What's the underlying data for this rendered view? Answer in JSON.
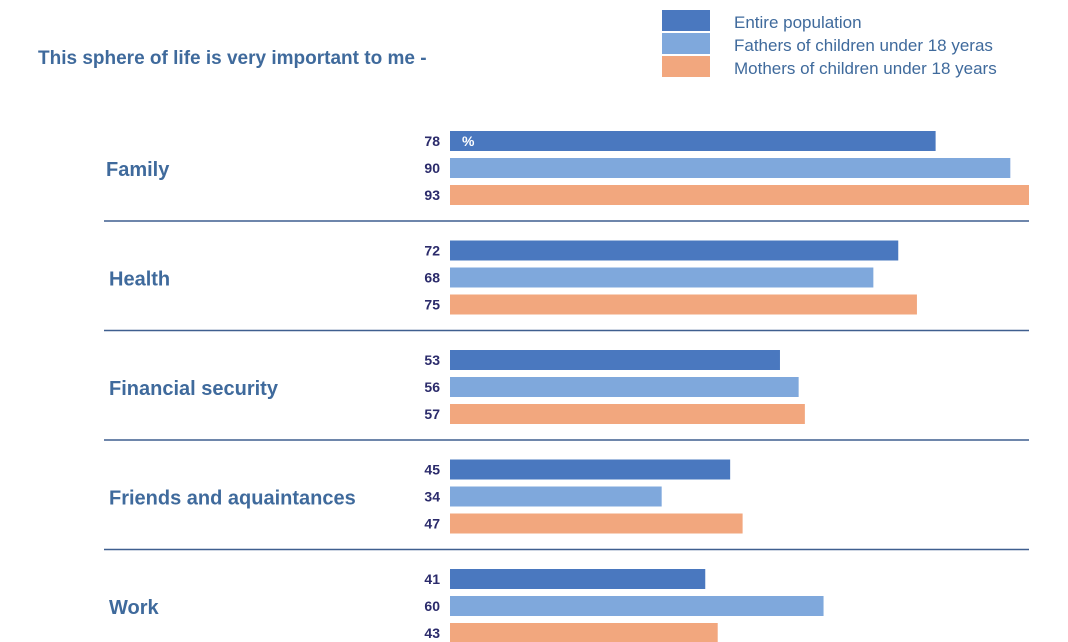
{
  "title": "This sphere of life is very important to me -",
  "legend": [
    {
      "name": "Entire population",
      "color": "#4a78bf"
    },
    {
      "name": "Fathers of children under 18 yeras",
      "color": "#7fa8dc"
    },
    {
      "name": "Mothers of children under 18 years",
      "color": "#f2a77e"
    }
  ],
  "chart_data": {
    "type": "bar",
    "orientation": "horizontal",
    "title": "This sphere of life is very important to me -",
    "unit_label": "%",
    "categories": [
      "Family",
      "Health",
      "Financial security",
      "Friends and aquaintances",
      "Work"
    ],
    "series": [
      {
        "name": "Entire population",
        "values": [
          78,
          72,
          53,
          45,
          41
        ]
      },
      {
        "name": "Fathers of children under 18 yeras",
        "values": [
          90,
          68,
          56,
          34,
          60
        ]
      },
      {
        "name": "Mothers of children under 18 years",
        "values": [
          93,
          75,
          57,
          47,
          43
        ]
      }
    ],
    "xlim": [
      0,
      93
    ],
    "grid": false,
    "legend_position": "top-right",
    "colors": [
      "#4a78bf",
      "#7fa8dc",
      "#f2a77e"
    ],
    "label_color": "#3f6a9c",
    "value_color": "#2b2b6b",
    "divider_color": "#3f5f8f"
  }
}
